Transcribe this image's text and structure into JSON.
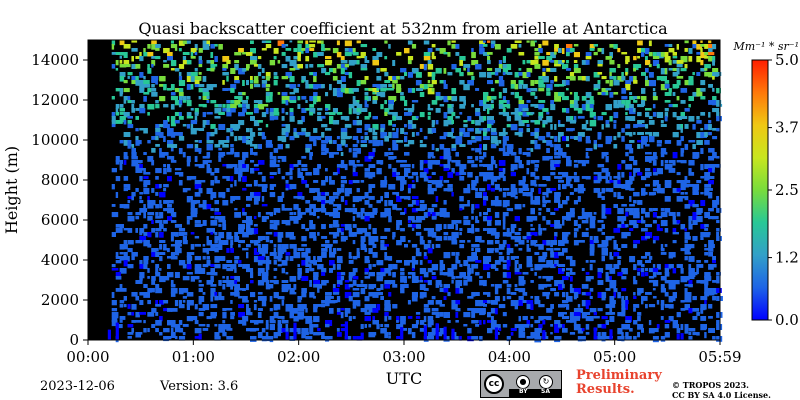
{
  "chart_data": {
    "type": "heatmap",
    "title": "Quasi backscatter coefficient at 532nm from arielle at Antarctica",
    "xlabel": "UTC",
    "ylabel": "Height (m)",
    "x_ticks": [
      "00:00",
      "01:00",
      "02:00",
      "03:00",
      "04:00",
      "05:00",
      "05:59"
    ],
    "x_range_minutes": [
      0,
      359
    ],
    "y_ticks": [
      "0",
      "2000",
      "4000",
      "6000",
      "8000",
      "10000",
      "12000",
      "14000"
    ],
    "ylim": [
      0,
      15000
    ],
    "colorbar": {
      "unit": "Mm⁻¹ * sr⁻¹",
      "range": [
        0.0,
        5.0
      ],
      "tick_labels": [
        "0.0",
        "1.2",
        "2.5",
        "3.7",
        "5.0"
      ],
      "colormap": [
        "#0000ff",
        "#1e64e6",
        "#32a0c8",
        "#28c896",
        "#78dc3c",
        "#c8e61e",
        "#f0c814",
        "#ff780a",
        "#ff1e00"
      ]
    },
    "background": "#000000",
    "field_description_note": ""
  },
  "footer": {
    "date": "2023-12-06",
    "version": "Version: 3.6",
    "preliminary_line1": "Preliminary",
    "preliminary_line2": "Results.",
    "copyright_line1": "© TROPOS 2023.",
    "copyright_line2": "CC BY SA 4.0 License.",
    "license_badge": {
      "cc": "cc",
      "by": "BY",
      "sa": "SA"
    }
  }
}
